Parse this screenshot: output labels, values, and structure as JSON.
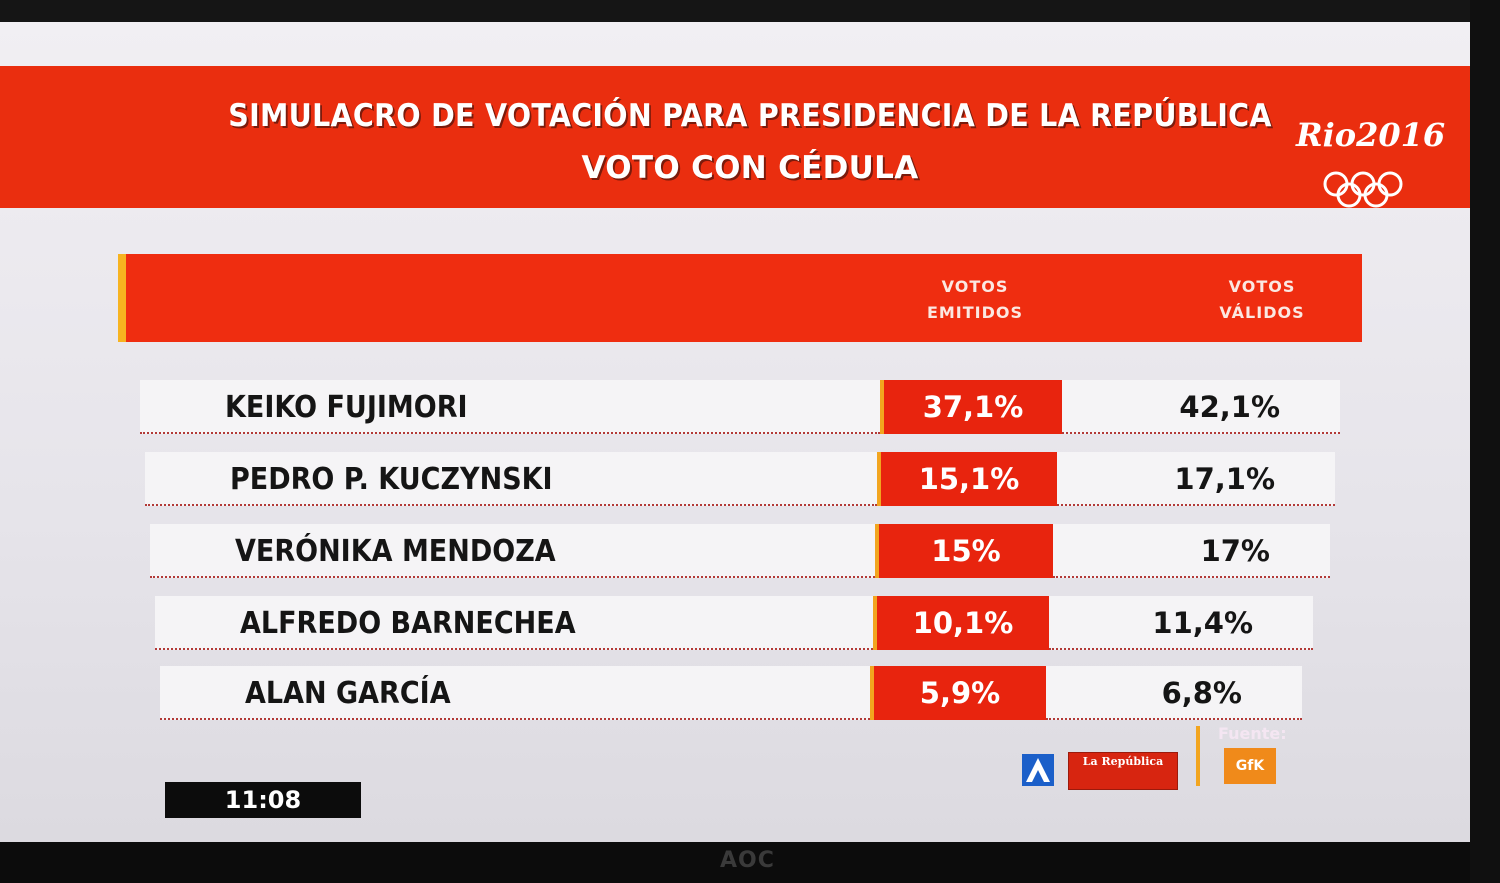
{
  "banner": {
    "title_line1": "SIMULACRO DE VOTACIÓN PARA PRESIDENCIA DE LA REPÚBLICA",
    "title_line2": "VOTO CON CÉDULA",
    "logo_text": "Rio2016",
    "color": "#ea2e0f"
  },
  "table": {
    "header_emitidos": "VOTOS EMITIDOS",
    "header_validos": "VOTOS VÁLIDOS",
    "rows": [
      {
        "name": "KEIKO FUJIMORI",
        "emitidos": "37,1%",
        "validos": "42,1%"
      },
      {
        "name": "PEDRO P. KUCZYNSKI",
        "emitidos": "15,1%",
        "validos": "17,1%"
      },
      {
        "name": "VERÓNIKA MENDOZA",
        "emitidos": "15%",
        "validos": "17%"
      },
      {
        "name": "ALFREDO BARNECHEA",
        "emitidos": "10,1%",
        "validos": "11,4%"
      },
      {
        "name": "ALAN GARCÍA",
        "emitidos": "5,9%",
        "validos": "6,8%"
      }
    ]
  },
  "footer": {
    "time": "11:08",
    "logo_republica": "La República",
    "fuente_label": "Fuente:",
    "fuente_name": "GfK",
    "tv_brand": "AOC"
  },
  "icons": [
    "olympic-rings-icon",
    "latina-logo-icon"
  ]
}
